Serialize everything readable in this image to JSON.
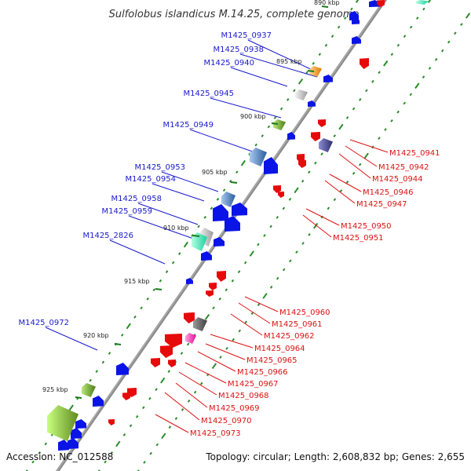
{
  "title": "Sulfolobus islandicus M.14.25, complete genome",
  "footer": {
    "accession": "Accession: NC_012588",
    "summary": "Topology: circular; Length: 2,608,832 bp; Genes: 2,655"
  },
  "kbp_marks": [
    {
      "label": "890 kbp",
      "kbp": 890
    },
    {
      "label": "895 kbp",
      "kbp": 895
    },
    {
      "label": "900 kbp",
      "kbp": 900
    },
    {
      "label": "905 kbp",
      "kbp": 905
    },
    {
      "label": "910 kbp",
      "kbp": 910
    },
    {
      "label": "915 kbp",
      "kbp": 915
    },
    {
      "label": "920 kbp",
      "kbp": 920
    },
    {
      "label": "925 kbp",
      "kbp": 925
    }
  ],
  "labels_left": [
    "M1425_0937",
    "M1425_0938",
    "M1425_0940",
    "M1425_0945",
    "M1425_0949",
    "M1425_0953",
    "M1425_0954",
    "M1425_0958",
    "M1425_0959",
    "M1425_2826",
    "M1425_0972"
  ],
  "labels_right": [
    "M1425_0941",
    "M1425_0942",
    "M1425_0944",
    "M1425_0946",
    "M1425_0947",
    "M1425_0950",
    "M1425_0951",
    "M1425_0960",
    "M1425_0961",
    "M1425_0962",
    "M1425_0964",
    "M1425_0965",
    "M1425_0966",
    "M1425_0967",
    "M1425_0968",
    "M1425_0969",
    "M1425_0970",
    "M1425_0973"
  ],
  "colors": {
    "backbone": "#8c8c8c",
    "forward_cds": "#0a14e6",
    "reverse_cds": "#e60a0a",
    "gc_skew": "#2a8c2a",
    "label_forward": "#1a1acc",
    "label_reverse": "#dd1111"
  }
}
